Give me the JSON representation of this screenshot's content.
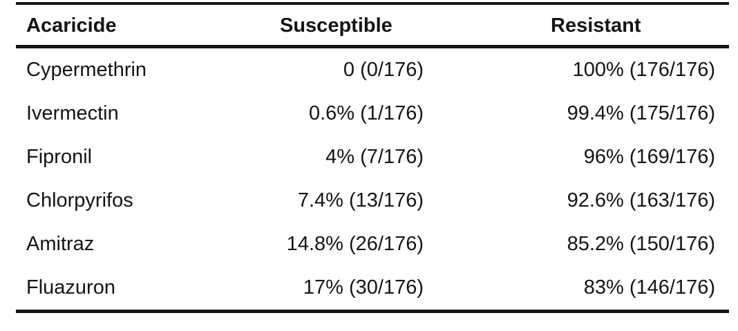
{
  "chart_data": {
    "type": "table",
    "columns": [
      "Acaricide",
      "Susceptible",
      "Resistant"
    ],
    "rows": [
      [
        "Cypermethrin",
        "0 (0/176)",
        "100% (176/176)"
      ],
      [
        "Ivermectin",
        "0.6% (1/176)",
        "99.4% (175/176)"
      ],
      [
        "Fipronil",
        "4% (7/176)",
        "96% (169/176)"
      ],
      [
        "Chlorpyrifos",
        "7.4% (13/176)",
        "92.6% (163/176)"
      ],
      [
        "Amitraz",
        "14.8% (26/176)",
        "85.2% (150/176)"
      ],
      [
        "Fluazuron",
        "17% (30/176)",
        "83% (146/176)"
      ]
    ],
    "denominator": 176,
    "layout_hints": {
      "name_column_align": "left",
      "value_columns_align": "right",
      "rules": [
        "top",
        "below-header",
        "bottom"
      ]
    }
  },
  "colors": {
    "text": "#141414",
    "rule": "#141414",
    "background": "#ffffff"
  }
}
